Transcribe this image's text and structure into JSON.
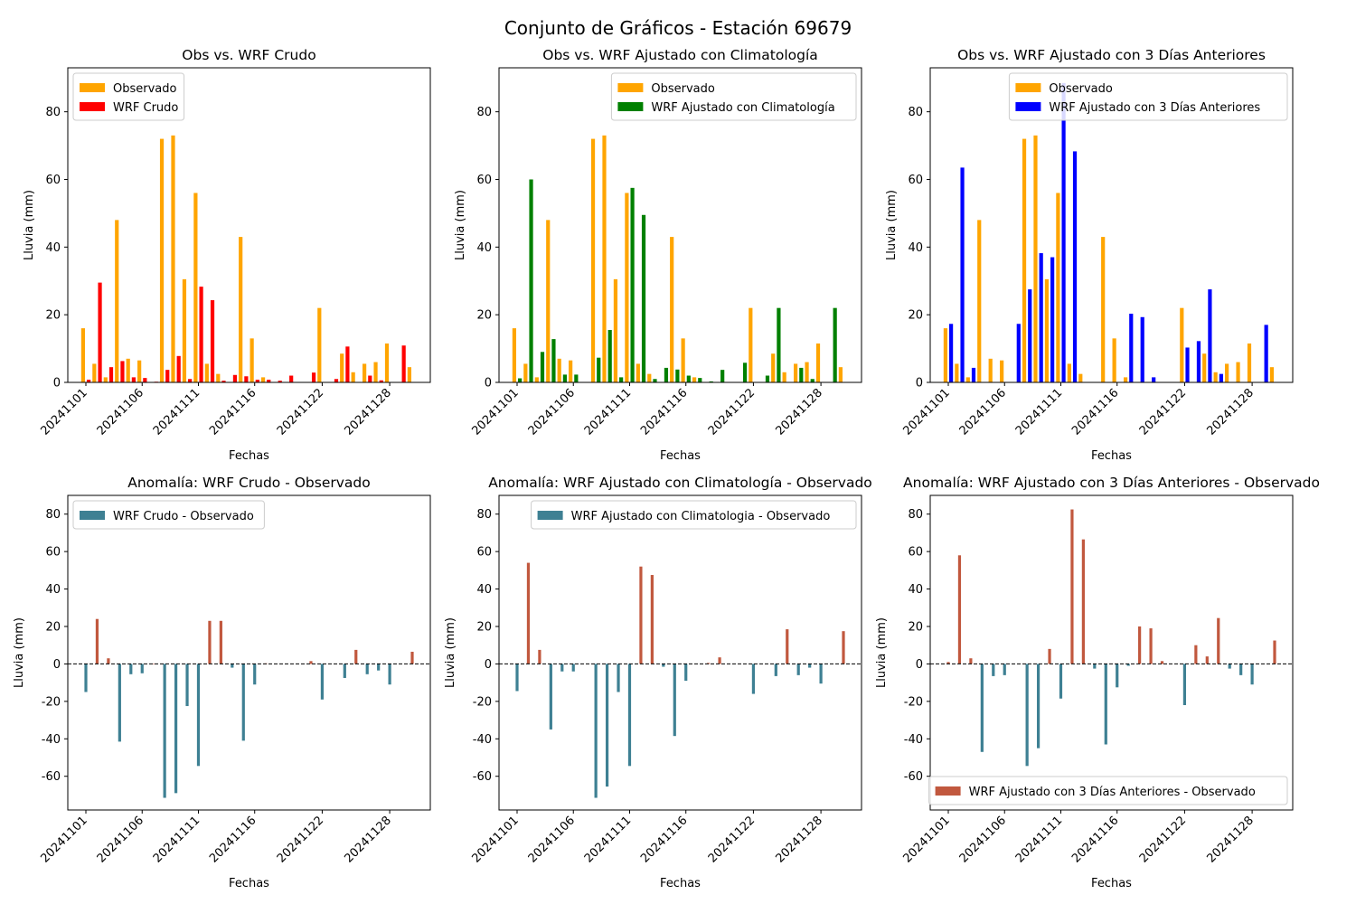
{
  "suptitle": "Conjunto de Gráficos - Estación 69679",
  "colors": {
    "observado": "#FFA500",
    "crudo": "#FF0000",
    "clim": "#008000",
    "tres": "#0000FF",
    "anom_pos": "#C1583E",
    "anom_neg": "#3E8093"
  },
  "chart_data": [
    {
      "type": "bar",
      "title": "Obs vs. WRF Crudo",
      "xlabel": "Fechas",
      "ylabel": "Lluvia (mm)",
      "ylim": [
        0,
        93
      ],
      "yticks": [
        0,
        20,
        40,
        60,
        80
      ],
      "x_ticks": [
        "20241101",
        "20241106",
        "20241111",
        "20241116",
        "20241122",
        "20241128"
      ],
      "legend_placement": "upper-left",
      "series": [
        {
          "name": "Observado",
          "color_key": "observado",
          "values": [
            16.0,
            5.5,
            1.5,
            48.0,
            7.0,
            6.5,
            0,
            72.0,
            73.0,
            30.5,
            56.0,
            5.5,
            2.5,
            0,
            43.0,
            13.0,
            1.5,
            0,
            0,
            0,
            0,
            22.0,
            0,
            8.5,
            3.0,
            5.5,
            6.0,
            11.5,
            0,
            4.5
          ]
        },
        {
          "name": "WRF Crudo",
          "color_key": "crudo",
          "values": [
            0.8,
            29.5,
            4.5,
            6.3,
            1.5,
            1.3,
            0.2,
            3.7,
            7.8,
            1.0,
            28.3,
            24.3,
            0.5,
            2.2,
            1.8,
            0.8,
            0.8,
            0.5,
            2.0,
            0,
            2.9,
            0,
            1.0,
            10.6,
            0,
            2.0,
            0.6,
            0,
            10.9,
            0
          ]
        }
      ]
    },
    {
      "type": "bar",
      "title": "Obs vs. WRF Ajustado con Climatología",
      "xlabel": "Fechas",
      "ylabel": "Lluvia (mm)",
      "ylim": [
        0,
        93
      ],
      "yticks": [
        0,
        20,
        40,
        60,
        80
      ],
      "x_ticks": [
        "20241101",
        "20241106",
        "20241111",
        "20241116",
        "20241122",
        "20241128"
      ],
      "legend_placement": "upper-right",
      "series": [
        {
          "name": "Observado",
          "color_key": "observado",
          "values": [
            16.0,
            5.5,
            1.5,
            48.0,
            7.0,
            6.5,
            0,
            72.0,
            73.0,
            30.5,
            56.0,
            5.5,
            2.5,
            0,
            43.0,
            13.0,
            1.5,
            0,
            0,
            0,
            0,
            22.0,
            0,
            8.5,
            3.0,
            5.5,
            6.0,
            11.5,
            0,
            4.5
          ]
        },
        {
          "name": "WRF Ajustado con Climatología",
          "color_key": "clim",
          "values": [
            1.2,
            60.0,
            9.0,
            12.8,
            2.3,
            2.3,
            0,
            7.3,
            15.5,
            1.5,
            57.5,
            49.5,
            1.0,
            4.3,
            3.8,
            2.0,
            1.3,
            0.3,
            3.7,
            0,
            5.8,
            0,
            2.0,
            22.0,
            0,
            4.3,
            1.0,
            0,
            22.0,
            0
          ]
        }
      ]
    },
    {
      "type": "bar",
      "title": "Obs vs. WRF Ajustado con 3 Días Anteriores",
      "xlabel": "Fechas",
      "ylabel": "Lluvia (mm)",
      "ylim": [
        0,
        93
      ],
      "yticks": [
        0,
        20,
        40,
        60,
        80
      ],
      "x_ticks": [
        "20241101",
        "20241106",
        "20241111",
        "20241116",
        "20241122",
        "20241128"
      ],
      "legend_placement": "upper-right",
      "series": [
        {
          "name": "Observado",
          "color_key": "observado",
          "values": [
            16.0,
            5.5,
            1.5,
            48.0,
            7.0,
            6.5,
            0,
            72.0,
            73.0,
            30.5,
            56.0,
            5.5,
            2.5,
            0,
            43.0,
            13.0,
            1.5,
            0,
            0,
            0,
            0,
            22.0,
            0,
            8.5,
            3.0,
            5.5,
            6.0,
            11.5,
            0,
            4.5
          ]
        },
        {
          "name": "WRF Ajustado con 3 Días Anteriores",
          "color_key": "tres",
          "values": [
            17.3,
            63.5,
            4.3,
            0,
            0,
            0,
            17.3,
            27.5,
            38.2,
            37.0,
            88.5,
            68.3,
            0,
            0,
            0,
            0,
            20.3,
            19.3,
            1.5,
            0,
            0,
            10.3,
            12.2,
            27.5,
            2.5,
            0,
            0,
            0,
            17.0,
            0
          ]
        }
      ]
    },
    {
      "type": "bar",
      "title": "Anomalía: WRF Crudo - Observado",
      "xlabel": "Fechas",
      "ylabel": "Lluvia (mm)",
      "ylim": [
        -78,
        90
      ],
      "yticks": [
        -60,
        -40,
        -20,
        0,
        20,
        40,
        60,
        80
      ],
      "x_ticks": [
        "20241101",
        "20241106",
        "20241111",
        "20241116",
        "20241122",
        "20241128"
      ],
      "legend_placement": "upper-left",
      "series": [
        {
          "name": "WRF Crudo - Observado",
          "values": [
            -15.0,
            24.0,
            3.0,
            -41.5,
            -5.5,
            -5.0,
            0.2,
            -71.5,
            -69.0,
            -22.5,
            -54.5,
            23.0,
            23.0,
            -2.0,
            -41.0,
            -11.0,
            0.3,
            0,
            0,
            0,
            1.5,
            -19.0,
            0,
            -7.5,
            7.5,
            -5.5,
            -3.5,
            -11.0,
            0,
            6.5
          ]
        }
      ]
    },
    {
      "type": "bar",
      "title": "Anomalía: WRF Ajustado con Climatología - Observado",
      "xlabel": "Fechas",
      "ylabel": "Lluvia (mm)",
      "ylim": [
        -78,
        90
      ],
      "yticks": [
        -60,
        -40,
        -20,
        0,
        20,
        40,
        60,
        80
      ],
      "x_ticks": [
        "20241101",
        "20241106",
        "20241111",
        "20241116",
        "20241122",
        "20241128"
      ],
      "legend_placement": "upper-right",
      "series": [
        {
          "name": "WRF Ajustado con Climatologia - Observado",
          "values": [
            -14.5,
            54.0,
            7.5,
            -35.0,
            -4.0,
            -4.0,
            0,
            -71.5,
            -65.5,
            -15.0,
            -54.5,
            52.0,
            47.5,
            -1.5,
            -38.5,
            -9.0,
            0,
            0.5,
            3.5,
            0,
            0,
            -16.0,
            0,
            -6.5,
            18.5,
            -6.0,
            -2.0,
            -10.5,
            0,
            17.5
          ]
        }
      ]
    },
    {
      "type": "bar",
      "title": "Anomalía: WRF Ajustado con 3 Días Anteriores - Observado",
      "xlabel": "Fechas",
      "ylabel": "Lluvia (mm)",
      "ylim": [
        -78,
        90
      ],
      "yticks": [
        -60,
        -40,
        -20,
        0,
        20,
        40,
        60,
        80
      ],
      "x_ticks": [
        "20241101",
        "20241106",
        "20241111",
        "20241116",
        "20241122",
        "20241128"
      ],
      "legend_placement": "lower-right",
      "series": [
        {
          "name": "WRF Ajustado con 3 Días Anteriores - Observado",
          "values": [
            1.0,
            58.0,
            3.0,
            -47.0,
            -6.5,
            -6.0,
            0,
            -54.5,
            -45.0,
            8.0,
            -18.5,
            82.5,
            66.5,
            -2.5,
            -43.0,
            -12.5,
            -1.0,
            20.0,
            19.0,
            1.5,
            0,
            -22.0,
            10.0,
            4.0,
            24.5,
            -2.5,
            -6.0,
            -11.0,
            0,
            12.5
          ]
        }
      ]
    }
  ]
}
